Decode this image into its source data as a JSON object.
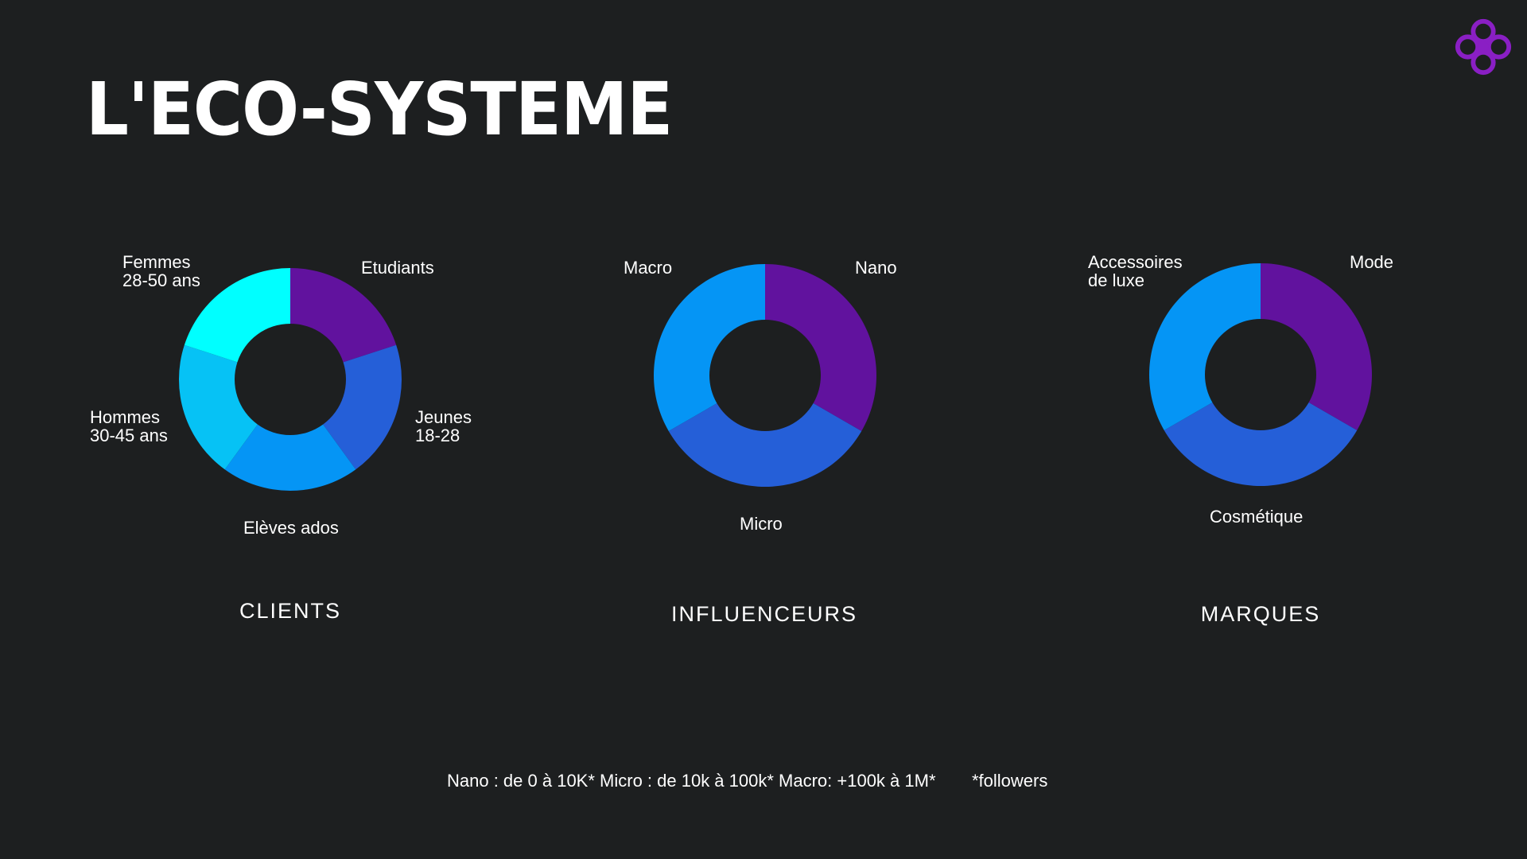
{
  "title": "L'ECO-SYSTEME",
  "logo": {
    "icon": "purple-knot-logo-icon",
    "color": "#8a1fc4"
  },
  "chart_data": [
    {
      "type": "pie",
      "group_label": "CLIENTS",
      "slices": [
        {
          "label": "Etudiants",
          "value": 20,
          "color": "#61129e"
        },
        {
          "label": "Jeunes\n18-28",
          "value": 20,
          "color": "#255fd8"
        },
        {
          "label": "Elèves ados",
          "value": 20,
          "color": "#0595f5"
        },
        {
          "label": "Hommes\n30-45 ans",
          "value": 20,
          "color": "#06c2f5"
        },
        {
          "label": "Femmes\n28-50 ans",
          "value": 20,
          "color": "#00ffff"
        }
      ]
    },
    {
      "type": "pie",
      "group_label": "INFLUENCEURS",
      "slices": [
        {
          "label": "Nano",
          "value": 33.3,
          "color": "#61129e"
        },
        {
          "label": "Micro",
          "value": 33.3,
          "color": "#255fd8"
        },
        {
          "label": "Macro",
          "value": 33.3,
          "color": "#0595f5"
        }
      ]
    },
    {
      "type": "pie",
      "group_label": "MARQUES",
      "slices": [
        {
          "label": "Mode",
          "value": 33.3,
          "color": "#61129e"
        },
        {
          "label": "Cosmétique",
          "value": 33.3,
          "color": "#255fd8"
        },
        {
          "label": "Accessoires\nde luxe",
          "value": 33.3,
          "color": "#0595f5"
        }
      ]
    }
  ],
  "footnote": {
    "definitions": "Nano : de 0 à 10K*  Micro : de 10k à 100k*  Macro: +100k à 1M*",
    "unit_note": "*followers"
  }
}
